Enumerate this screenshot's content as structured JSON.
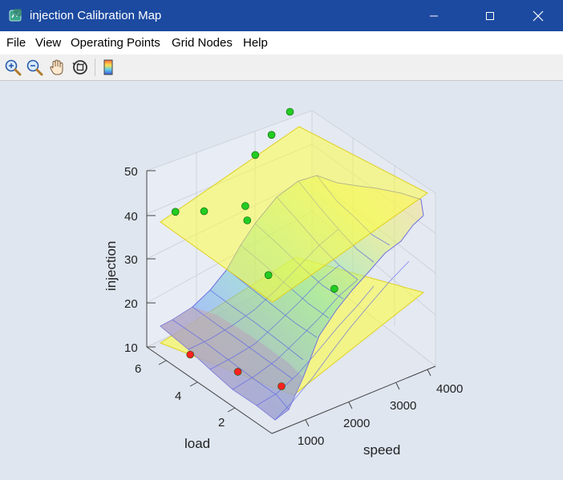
{
  "window": {
    "title": "injection Calibration Map",
    "controls": {
      "minimize": "minimize",
      "maximize": "maximize",
      "close": "close"
    }
  },
  "menu": {
    "file": "File",
    "view": "View",
    "operating_points": "Operating Points",
    "grid_nodes": "Grid Nodes",
    "help": "Help"
  },
  "toolbar": {
    "icons": [
      "zoom-in-icon",
      "zoom-out-icon",
      "pan-hand-icon",
      "rotate-3d-icon",
      "colorbar-icon"
    ]
  },
  "chart_data": {
    "type": "3d-surface",
    "axes": {
      "x": {
        "label": "speed",
        "ticks": [
          "1000",
          "2000",
          "3000",
          "4000"
        ],
        "range": [
          500,
          4500
        ]
      },
      "y": {
        "label": "load",
        "ticks": [
          "2",
          "4",
          "6"
        ],
        "range": [
          0.5,
          6.5
        ]
      },
      "z": {
        "label": "injection",
        "ticks": [
          "10",
          "20",
          "30",
          "40",
          "50"
        ],
        "range": [
          10,
          50
        ]
      }
    },
    "planes": [
      {
        "description": "upper bound plane",
        "z": 38,
        "color": "#ffff00"
      },
      {
        "description": "lower bound plane",
        "z": 11,
        "color": "#ffff00"
      }
    ],
    "surface_colormap": [
      "#8c64ff",
      "#6fa4f0",
      "#79e0b4",
      "#e6f26a",
      "#ffe6a8"
    ],
    "operating_points": [
      {
        "speed": 900,
        "load": 5.2,
        "injection": 11,
        "status": "outside",
        "color": "#ff2020"
      },
      {
        "speed": 1250,
        "load": 3.6,
        "injection": 11,
        "status": "outside",
        "color": "#ff2020"
      },
      {
        "speed": 1500,
        "load": 2.0,
        "injection": 12,
        "status": "outside",
        "color": "#ff2020"
      },
      {
        "speed": 1200,
        "load": 6.5,
        "injection": 38,
        "status": "inside",
        "color": "#22cc22"
      },
      {
        "speed": 1750,
        "load": 6.2,
        "injection": 37,
        "status": "inside",
        "color": "#22cc22"
      },
      {
        "speed": 2600,
        "load": 5.8,
        "injection": 33,
        "status": "inside",
        "color": "#22cc22"
      },
      {
        "speed": 3000,
        "load": 6.2,
        "injection": 45,
        "status": "inside",
        "color": "#22cc22"
      },
      {
        "speed": 3500,
        "load": 6.4,
        "injection": 47,
        "status": "inside",
        "color": "#22cc22"
      },
      {
        "speed": 4000,
        "load": 6.5,
        "injection": 50,
        "status": "inside",
        "color": "#22cc22"
      },
      {
        "speed": 2200,
        "load": 4.0,
        "injection": 28,
        "status": "inside",
        "color": "#22cc22"
      },
      {
        "speed": 2400,
        "load": 5.5,
        "injection": 38,
        "status": "inside",
        "color": "#22cc22"
      },
      {
        "speed": 3200,
        "load": 2.8,
        "injection": 25,
        "status": "inside",
        "color": "#22cc22"
      }
    ],
    "grid": true,
    "legend": "none"
  }
}
